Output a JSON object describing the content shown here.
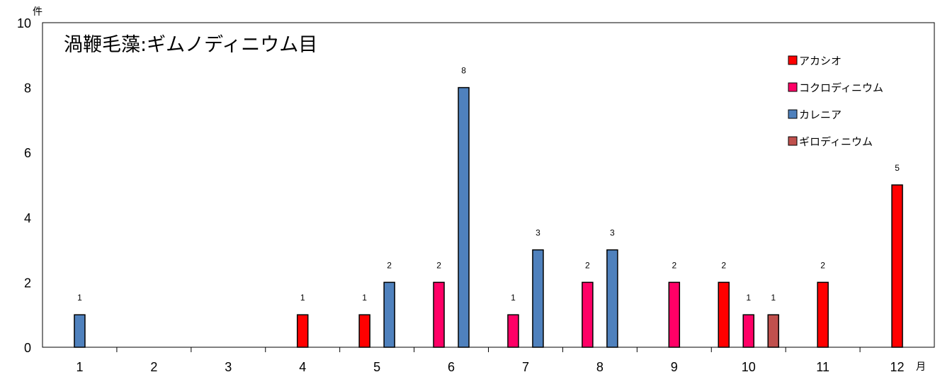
{
  "chart_data": {
    "type": "bar",
    "title": "渦鞭毛藻:ギムノディニウム目",
    "ylabel_unit": "件",
    "xlabel_unit": "月",
    "ylim": [
      0,
      10
    ],
    "yticks": [
      0,
      2,
      4,
      6,
      8,
      10
    ],
    "categories": [
      "1",
      "2",
      "3",
      "4",
      "5",
      "6",
      "7",
      "8",
      "9",
      "10",
      "11",
      "12"
    ],
    "legend_position": "top-right",
    "grid": false,
    "series": [
      {
        "name": "アカシオ",
        "color": "#ff0000",
        "values": [
          0,
          0,
          0,
          1,
          1,
          0,
          0,
          0,
          0,
          2,
          2,
          5
        ]
      },
      {
        "name": "コクロディニウム",
        "color": "#ff0066",
        "values": [
          0,
          0,
          0,
          0,
          0,
          2,
          1,
          2,
          2,
          1,
          0,
          0
        ]
      },
      {
        "name": "カレニア",
        "color": "#4f81bd",
        "values": [
          1,
          0,
          0,
          0,
          2,
          8,
          3,
          3,
          0,
          0,
          0,
          0
        ]
      },
      {
        "name": "ギロディニウム",
        "color": "#c0504d",
        "values": [
          0,
          0,
          0,
          0,
          0,
          0,
          0,
          0,
          0,
          1,
          0,
          0
        ]
      }
    ]
  }
}
